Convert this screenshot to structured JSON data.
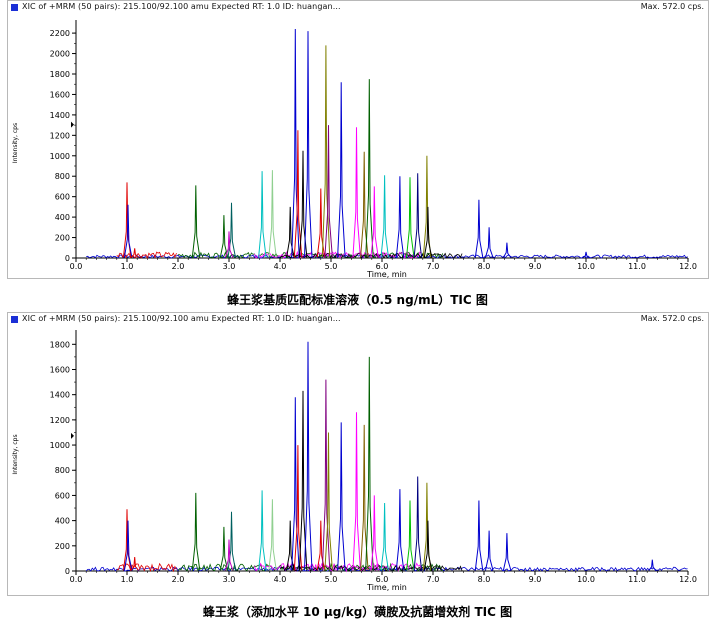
{
  "chart_data": [
    {
      "type": "line",
      "header": "XIC of +MRM (50 pairs): 215.100/92.100 amu Expected RT: 1.0 ID: huangan...",
      "max_label": "Max. 572.0 cps.",
      "xlabel": "Time, min",
      "ylabel": "Intensity, cps",
      "xlim": [
        0.0,
        12.0
      ],
      "ylim": [
        0,
        2250
      ],
      "xticks": [
        "0.0",
        "1.0",
        "2.0",
        "3.0",
        "4.0",
        "5.0",
        "6.0",
        "7.0",
        "8.0",
        "9.0",
        "10.0",
        "11.0",
        "12.0"
      ],
      "yticks": [
        "0",
        "200",
        "400",
        "600",
        "800",
        "1000",
        "1200",
        "1400",
        "1600",
        "1800",
        "2000",
        "2200"
      ],
      "grid": false,
      "caption": "蜂王浆基质匹配标准溶液（0.5 ng/mL）TIC 图",
      "peaks": [
        {
          "x": 1.0,
          "y": 740,
          "color": "#e00000"
        },
        {
          "x": 1.02,
          "y": 520,
          "color": "#0000d0"
        },
        {
          "x": 1.15,
          "y": 95,
          "color": "#e00000"
        },
        {
          "x": 2.35,
          "y": 710,
          "color": "#006000"
        },
        {
          "x": 2.9,
          "y": 420,
          "color": "#006000"
        },
        {
          "x": 3.05,
          "y": 540,
          "color": "#006060"
        },
        {
          "x": 3.0,
          "y": 260,
          "color": "#c000c0"
        },
        {
          "x": 3.65,
          "y": 850,
          "color": "#00c0c0"
        },
        {
          "x": 3.85,
          "y": 860,
          "color": "#90d090"
        },
        {
          "x": 4.2,
          "y": 500,
          "color": "#000000"
        },
        {
          "x": 4.3,
          "y": 2240,
          "color": "#0000d0"
        },
        {
          "x": 4.35,
          "y": 1250,
          "color": "#e00000"
        },
        {
          "x": 4.45,
          "y": 1050,
          "color": "#000000"
        },
        {
          "x": 4.55,
          "y": 2220,
          "color": "#0000d0"
        },
        {
          "x": 4.8,
          "y": 680,
          "color": "#e00000"
        },
        {
          "x": 4.9,
          "y": 2080,
          "color": "#808000"
        },
        {
          "x": 4.95,
          "y": 1300,
          "color": "#800080"
        },
        {
          "x": 5.2,
          "y": 1720,
          "color": "#0000d0"
        },
        {
          "x": 5.5,
          "y": 1280,
          "color": "#ff00ff"
        },
        {
          "x": 5.65,
          "y": 1040,
          "color": "#806000"
        },
        {
          "x": 5.75,
          "y": 1750,
          "color": "#006000"
        },
        {
          "x": 5.85,
          "y": 700,
          "color": "#ff00ff"
        },
        {
          "x": 6.05,
          "y": 810,
          "color": "#00c0c0"
        },
        {
          "x": 6.35,
          "y": 800,
          "color": "#0000d0"
        },
        {
          "x": 6.55,
          "y": 790,
          "color": "#00c000"
        },
        {
          "x": 6.7,
          "y": 830,
          "color": "#000080"
        },
        {
          "x": 6.88,
          "y": 1000,
          "color": "#808000"
        },
        {
          "x": 6.9,
          "y": 500,
          "color": "#000000"
        },
        {
          "x": 7.9,
          "y": 570,
          "color": "#0000d0"
        },
        {
          "x": 8.1,
          "y": 300,
          "color": "#0000d0"
        },
        {
          "x": 8.45,
          "y": 150,
          "color": "#0000d0"
        },
        {
          "x": 10.0,
          "y": 60,
          "color": "#0000d0"
        }
      ]
    },
    {
      "type": "line",
      "header": "XIC of +MRM (50 pairs): 215.100/92.100 amu Expected RT: 1.0 ID: huangan...",
      "max_label": "Max. 572.0 cps.",
      "xlabel": "Time, min",
      "ylabel": "Intensity, cps",
      "xlim": [
        0.0,
        12.0
      ],
      "ylim": [
        0,
        1850
      ],
      "xticks": [
        "0.0",
        "1.0",
        "2.0",
        "3.0",
        "4.0",
        "5.0",
        "6.0",
        "7.0",
        "8.0",
        "9.0",
        "10.0",
        "11.0",
        "12.0"
      ],
      "yticks": [
        "0",
        "200",
        "400",
        "600",
        "800",
        "1000",
        "1200",
        "1400",
        "1600",
        "1800"
      ],
      "grid": false,
      "caption": "蜂王浆（添加水平 10 μg/kg）磺胺及抗菌增效剂 TIC 图",
      "peaks": [
        {
          "x": 1.0,
          "y": 490,
          "color": "#e00000"
        },
        {
          "x": 1.02,
          "y": 400,
          "color": "#0000d0"
        },
        {
          "x": 1.15,
          "y": 110,
          "color": "#e00000"
        },
        {
          "x": 2.35,
          "y": 620,
          "color": "#006000"
        },
        {
          "x": 2.9,
          "y": 350,
          "color": "#006000"
        },
        {
          "x": 3.05,
          "y": 470,
          "color": "#006060"
        },
        {
          "x": 3.0,
          "y": 250,
          "color": "#c000c0"
        },
        {
          "x": 3.65,
          "y": 640,
          "color": "#00c0c0"
        },
        {
          "x": 3.85,
          "y": 570,
          "color": "#90d090"
        },
        {
          "x": 4.2,
          "y": 400,
          "color": "#000000"
        },
        {
          "x": 4.3,
          "y": 1380,
          "color": "#0000d0"
        },
        {
          "x": 4.35,
          "y": 1000,
          "color": "#e00000"
        },
        {
          "x": 4.45,
          "y": 1430,
          "color": "#000000"
        },
        {
          "x": 4.55,
          "y": 1820,
          "color": "#0000d0"
        },
        {
          "x": 4.8,
          "y": 400,
          "color": "#e00000"
        },
        {
          "x": 4.9,
          "y": 1520,
          "color": "#800080"
        },
        {
          "x": 4.95,
          "y": 1100,
          "color": "#808000"
        },
        {
          "x": 5.2,
          "y": 1180,
          "color": "#0000d0"
        },
        {
          "x": 5.5,
          "y": 1260,
          "color": "#ff00ff"
        },
        {
          "x": 5.65,
          "y": 1160,
          "color": "#806000"
        },
        {
          "x": 5.75,
          "y": 1700,
          "color": "#006000"
        },
        {
          "x": 5.85,
          "y": 600,
          "color": "#ff00ff"
        },
        {
          "x": 6.05,
          "y": 540,
          "color": "#00c0c0"
        },
        {
          "x": 6.35,
          "y": 650,
          "color": "#0000d0"
        },
        {
          "x": 6.55,
          "y": 560,
          "color": "#00c000"
        },
        {
          "x": 6.7,
          "y": 750,
          "color": "#000080"
        },
        {
          "x": 6.88,
          "y": 700,
          "color": "#808000"
        },
        {
          "x": 6.9,
          "y": 400,
          "color": "#000000"
        },
        {
          "x": 7.9,
          "y": 560,
          "color": "#0000d0"
        },
        {
          "x": 8.1,
          "y": 320,
          "color": "#0000d0"
        },
        {
          "x": 8.45,
          "y": 300,
          "color": "#0000d0"
        },
        {
          "x": 11.3,
          "y": 90,
          "color": "#0000d0"
        }
      ]
    }
  ]
}
